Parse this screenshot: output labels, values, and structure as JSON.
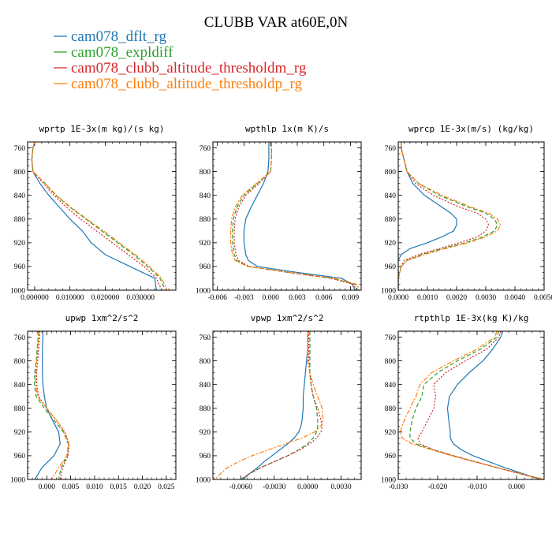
{
  "figure": {
    "title": "CLUBB VAR at60E,0N"
  },
  "legend": [
    {
      "label": "cam078_dflt_rg",
      "color": "#1f77b4"
    },
    {
      "label": "cam078_expldiff",
      "color": "#2ca02c"
    },
    {
      "label": "cam078_clubb_altitude_thresholdm_rg",
      "color": "#d62728"
    },
    {
      "label": "cam078_clubb_altitude_thresholdp_rg",
      "color": "#ff7f0e"
    }
  ],
  "chart_data": [
    {
      "type": "line",
      "title": "wprtp  1E-3x(m kg)/(s kg)",
      "xlim": [
        -0.002,
        0.04
      ],
      "ylim": [
        750,
        1000
      ],
      "xticks": [
        0,
        0.01,
        0.02,
        0.03
      ],
      "xticklabels": [
        "0.000000",
        "0.010000",
        "0.020000",
        "0.030000"
      ],
      "yticks": [
        760,
        800,
        840,
        880,
        920,
        960,
        1000
      ],
      "yticklabels": [
        "760",
        "800",
        "840",
        "880",
        "920",
        "960",
        "1000"
      ],
      "y": [
        750,
        760,
        780,
        800,
        820,
        840,
        860,
        880,
        900,
        920,
        940,
        960,
        980,
        1000
      ],
      "series": [
        {
          "name": "cam078_dflt_rg",
          "color": "#1f77b4",
          "style": "solid",
          "values": [
            0.0,
            -0.0005,
            -0.0008,
            -0.0005,
            0.0015,
            0.004,
            0.007,
            0.01,
            0.0135,
            0.016,
            0.02,
            0.027,
            0.034,
            0.0345
          ]
        },
        {
          "name": "cam078_expldiff",
          "color": "#2ca02c",
          "style": "dashed",
          "values": [
            0.0,
            -0.0005,
            -0.0008,
            -0.0005,
            0.003,
            0.006,
            0.01,
            0.0145,
            0.019,
            0.0235,
            0.028,
            0.032,
            0.0355,
            0.037
          ]
        },
        {
          "name": "cam078_clubb_altitude_thresholdm_rg",
          "color": "#d62728",
          "style": "dotted",
          "values": [
            0.0,
            -0.0005,
            -0.0008,
            -0.0005,
            0.0025,
            0.0055,
            0.009,
            0.013,
            0.0175,
            0.022,
            0.0265,
            0.031,
            0.0345,
            0.036
          ]
        },
        {
          "name": "cam078_clubb_altitude_thresholdp_rg",
          "color": "#ff7f0e",
          "style": "dashdot",
          "values": [
            0.0,
            -0.0005,
            -0.0008,
            -0.0005,
            0.003,
            0.0062,
            0.0102,
            0.0148,
            0.0195,
            0.024,
            0.0285,
            0.0325,
            0.036,
            0.0375
          ]
        }
      ]
    },
    {
      "type": "line",
      "title": "wpthlp  1x(m K)/s",
      "xlim": [
        -0.0065,
        0.0102
      ],
      "ylim": [
        750,
        1000
      ],
      "xticks": [
        -0.006,
        -0.003,
        0.0,
        0.003,
        0.006,
        0.009
      ],
      "xticklabels": [
        "-0.006",
        "-0.003",
        "0.000",
        "0.003",
        "0.006",
        "0.009"
      ],
      "yticks": [
        760,
        800,
        840,
        880,
        920,
        960,
        1000
      ],
      "yticklabels": [
        "760",
        "800",
        "840",
        "880",
        "920",
        "960",
        "1000"
      ],
      "y": [
        750,
        760,
        780,
        800,
        820,
        840,
        860,
        880,
        900,
        920,
        940,
        950,
        960,
        970,
        980,
        990,
        1000
      ],
      "series": [
        {
          "name": "cam078_dflt_rg",
          "color": "#1f77b4",
          "style": "solid",
          "values": [
            -0.0002,
            -0.0002,
            -0.0002,
            -0.0003,
            -0.0008,
            -0.0015,
            -0.0022,
            -0.0028,
            -0.003,
            -0.003,
            -0.0028,
            -0.0025,
            -0.0015,
            0.003,
            0.008,
            0.0092,
            0.0095
          ]
        },
        {
          "name": "cam078_expldiff",
          "color": "#2ca02c",
          "style": "dashed",
          "values": [
            0.0001,
            0.0001,
            0.0001,
            0.0,
            -0.0015,
            -0.003,
            -0.0038,
            -0.0042,
            -0.0043,
            -0.0043,
            -0.0041,
            -0.0038,
            -0.0025,
            0.002,
            0.007,
            0.0095,
            0.0098
          ]
        },
        {
          "name": "cam078_clubb_altitude_thresholdm_rg",
          "color": "#d62728",
          "style": "dotted",
          "values": [
            0.0001,
            0.0001,
            0.0001,
            0.0,
            -0.0013,
            -0.0028,
            -0.0036,
            -0.004,
            -0.0041,
            -0.0041,
            -0.0039,
            -0.0036,
            -0.0024,
            0.002,
            0.0068,
            0.0093,
            0.0097
          ]
        },
        {
          "name": "cam078_clubb_altitude_thresholdp_rg",
          "color": "#ff7f0e",
          "style": "dashdot",
          "values": [
            0.0001,
            0.0001,
            0.0001,
            0.0,
            -0.0016,
            -0.0032,
            -0.004,
            -0.0044,
            -0.0045,
            -0.0045,
            -0.0043,
            -0.004,
            -0.0026,
            0.0022,
            0.0072,
            0.0097,
            0.01
          ]
        }
      ]
    },
    {
      "type": "line",
      "title": "wprcp  1E-3x(m/s) (kg/kg)",
      "xlim": [
        0,
        0.005
      ],
      "ylim": [
        750,
        1000
      ],
      "xticks": [
        0,
        0.001,
        0.002,
        0.003,
        0.004,
        0.005
      ],
      "xticklabels": [
        "0.0000",
        "0.0010",
        "0.0020",
        "0.0030",
        "0.0040",
        "0.0050"
      ],
      "yticks": [
        760,
        800,
        840,
        880,
        920,
        960,
        1000
      ],
      "yticklabels": [
        "760",
        "800",
        "840",
        "880",
        "920",
        "960",
        "1000"
      ],
      "y": [
        750,
        760,
        780,
        800,
        820,
        840,
        860,
        870,
        880,
        890,
        900,
        910,
        920,
        930,
        940,
        950,
        960,
        980,
        1000
      ],
      "series": [
        {
          "name": "cam078_dflt_rg",
          "color": "#1f77b4",
          "style": "solid",
          "values": [
            0.0001,
            0.0001,
            0.0002,
            0.0003,
            0.0005,
            0.0009,
            0.0015,
            0.0018,
            0.002,
            0.002,
            0.0019,
            0.0015,
            0.001,
            0.0004,
            0.0001,
            0.0,
            0.0,
            0.0,
            0.0
          ]
        },
        {
          "name": "cam078_expldiff",
          "color": "#2ca02c",
          "style": "dashed",
          "values": [
            0.0001,
            0.0001,
            0.0002,
            0.0003,
            0.0007,
            0.0014,
            0.0024,
            0.003,
            0.0033,
            0.0034,
            0.0033,
            0.0029,
            0.0023,
            0.0015,
            0.0008,
            0.0003,
            0.0001,
            0.0,
            0.0
          ]
        },
        {
          "name": "cam078_clubb_altitude_thresholdm_rg",
          "color": "#d62728",
          "style": "dotted",
          "values": [
            0.0001,
            0.0001,
            0.0002,
            0.0003,
            0.0006,
            0.0012,
            0.0021,
            0.0027,
            0.003,
            0.0031,
            0.003,
            0.0027,
            0.0021,
            0.0014,
            0.0007,
            0.0002,
            0.0001,
            0.0,
            0.0
          ]
        },
        {
          "name": "cam078_clubb_altitude_thresholdp_rg",
          "color": "#ff7f0e",
          "style": "dashdot",
          "values": [
            0.0001,
            0.0001,
            0.0002,
            0.0003,
            0.0007,
            0.0015,
            0.0025,
            0.0031,
            0.0034,
            0.0035,
            0.0034,
            0.003,
            0.0024,
            0.0016,
            0.0009,
            0.0003,
            0.0001,
            0.0,
            0.0
          ]
        }
      ]
    },
    {
      "type": "line",
      "title": "upwp  1xm^2/s^2",
      "xlim": [
        -0.004,
        0.027
      ],
      "ylim": [
        750,
        1000
      ],
      "xticks": [
        0.0,
        0.005,
        0.01,
        0.015,
        0.02,
        0.025
      ],
      "xticklabels": [
        "0.000",
        "0.005",
        "0.010",
        "0.015",
        "0.020",
        "0.025"
      ],
      "yticks": [
        760,
        800,
        840,
        880,
        920,
        960,
        1000
      ],
      "yticklabels": [
        "760",
        "800",
        "840",
        "880",
        "920",
        "960",
        "1000"
      ],
      "y": [
        750,
        760,
        780,
        800,
        820,
        840,
        860,
        880,
        900,
        920,
        940,
        960,
        980,
        1000
      ],
      "series": [
        {
          "name": "cam078_dflt_rg",
          "color": "#1f77b4",
          "style": "solid",
          "values": [
            -0.0008,
            -0.0008,
            -0.0009,
            -0.0009,
            -0.0009,
            -0.0008,
            -0.0005,
            0.0,
            0.0012,
            0.0025,
            0.0028,
            0.0015,
            -0.001,
            -0.0025
          ]
        },
        {
          "name": "cam078_expldiff",
          "color": "#2ca02c",
          "style": "dashed",
          "values": [
            -0.0018,
            -0.0018,
            -0.002,
            -0.0022,
            -0.0025,
            -0.0026,
            -0.0022,
            -0.0005,
            0.0015,
            0.0035,
            0.0045,
            0.0043,
            0.003,
            0.0025
          ]
        },
        {
          "name": "cam078_clubb_altitude_thresholdm_rg",
          "color": "#d62728",
          "style": "dotted",
          "values": [
            -0.0015,
            -0.0015,
            -0.0017,
            -0.0019,
            -0.0021,
            -0.0021,
            -0.0017,
            0.0,
            0.002,
            0.0038,
            0.0047,
            0.0045,
            0.0033,
            0.0028
          ]
        },
        {
          "name": "cam078_clubb_altitude_thresholdp_rg",
          "color": "#ff7f0e",
          "style": "dashdot",
          "values": [
            -0.0017,
            -0.0017,
            -0.0019,
            -0.0021,
            -0.0023,
            -0.0023,
            -0.0019,
            0.0,
            0.002,
            0.0037,
            0.0046,
            0.0042,
            0.0025,
            0.001
          ]
        }
      ]
    },
    {
      "type": "line",
      "title": "vpwp  1xm^2/s^2",
      "xlim": [
        -0.0085,
        0.0048
      ],
      "ylim": [
        750,
        1000
      ],
      "xticks": [
        -0.006,
        -0.003,
        0.0,
        0.003
      ],
      "xticklabels": [
        "-0.0060",
        "-0.0030",
        "0.0000",
        "0.0030"
      ],
      "yticks": [
        760,
        800,
        840,
        880,
        920,
        960,
        1000
      ],
      "yticklabels": [
        "760",
        "800",
        "840",
        "880",
        "920",
        "960",
        "1000"
      ],
      "y": [
        750,
        760,
        780,
        800,
        820,
        840,
        860,
        880,
        900,
        910,
        920,
        930,
        940,
        950,
        960,
        970,
        980,
        990,
        1000
      ],
      "series": [
        {
          "name": "cam078_dflt_rg",
          "color": "#1f77b4",
          "style": "solid",
          "values": [
            0.0,
            0.0,
            0.0,
            -0.0001,
            -0.0002,
            -0.0003,
            -0.0004,
            -0.0004,
            -0.0005,
            -0.0006,
            -0.0008,
            -0.0012,
            -0.0018,
            -0.0025,
            -0.0032,
            -0.0039,
            -0.0045,
            -0.0052,
            -0.0058
          ]
        },
        {
          "name": "cam078_expldiff",
          "color": "#2ca02c",
          "style": "dashed",
          "values": [
            0.0002,
            0.0002,
            0.0002,
            0.0002,
            0.0002,
            0.0003,
            0.0005,
            0.0008,
            0.0009,
            0.0009,
            0.0008,
            0.0005,
            0.0,
            -0.0008,
            -0.0018,
            -0.003,
            -0.0042,
            -0.0052,
            -0.006
          ]
        },
        {
          "name": "cam078_clubb_altitude_thresholdm_rg",
          "color": "#d62728",
          "style": "dotted",
          "values": [
            0.0001,
            0.0001,
            0.0001,
            0.0001,
            0.0002,
            0.0003,
            0.0005,
            0.0009,
            0.0012,
            0.0013,
            0.0012,
            0.0008,
            0.0002,
            -0.0007,
            -0.0018,
            -0.003,
            -0.0042,
            -0.0052,
            -0.006
          ]
        },
        {
          "name": "cam078_clubb_altitude_thresholdp_rg",
          "color": "#ff7f0e",
          "style": "dashdot",
          "values": [
            0.0,
            0.0,
            0.0,
            0.0,
            0.0002,
            0.0005,
            0.0009,
            0.0013,
            0.0014,
            0.0012,
            0.0006,
            -0.0005,
            -0.002,
            -0.0035,
            -0.005,
            -0.0062,
            -0.0072,
            -0.0078,
            -0.0083
          ]
        }
      ]
    },
    {
      "type": "line",
      "title": "rtpthlp  1E-3x(kg K)/kg",
      "xlim": [
        -0.03,
        0.007
      ],
      "ylim": [
        750,
        1000
      ],
      "xticks": [
        -0.03,
        -0.02,
        -0.01,
        0.0
      ],
      "xticklabels": [
        "-0.030",
        "-0.020",
        "-0.010",
        "0.000"
      ],
      "yticks": [
        760,
        800,
        840,
        880,
        920,
        960,
        1000
      ],
      "yticklabels": [
        "760",
        "800",
        "840",
        "880",
        "920",
        "960",
        "1000"
      ],
      "y": [
        750,
        760,
        780,
        800,
        820,
        840,
        860,
        880,
        900,
        920,
        930,
        940,
        950,
        960,
        980,
        1000
      ],
      "series": [
        {
          "name": "cam078_dflt_rg",
          "color": "#1f77b4",
          "style": "solid",
          "values": [
            -0.0035,
            -0.004,
            -0.006,
            -0.0085,
            -0.012,
            -0.015,
            -0.017,
            -0.0175,
            -0.0172,
            -0.0168,
            -0.0168,
            -0.016,
            -0.014,
            -0.011,
            -0.003,
            0.006
          ]
        },
        {
          "name": "cam078_expldiff",
          "color": "#2ca02c",
          "style": "dashed",
          "values": [
            -0.0045,
            -0.005,
            -0.009,
            -0.015,
            -0.02,
            -0.0235,
            -0.024,
            -0.0255,
            -0.0265,
            -0.027,
            -0.027,
            -0.0255,
            -0.021,
            -0.016,
            -0.005,
            0.0065
          ]
        },
        {
          "name": "cam078_clubb_altitude_thresholdm_rg",
          "color": "#d62728",
          "style": "dotted",
          "values": [
            -0.004,
            -0.0045,
            -0.0075,
            -0.013,
            -0.018,
            -0.021,
            -0.0205,
            -0.021,
            -0.0225,
            -0.024,
            -0.025,
            -0.0245,
            -0.021,
            -0.016,
            -0.005,
            0.0065
          ]
        },
        {
          "name": "cam078_clubb_altitude_thresholdp_rg",
          "color": "#ff7f0e",
          "style": "dashdot",
          "values": [
            -0.005,
            -0.0055,
            -0.01,
            -0.016,
            -0.0215,
            -0.0245,
            -0.0255,
            -0.027,
            -0.0285,
            -0.0295,
            -0.029,
            -0.0265,
            -0.0215,
            -0.0165,
            -0.005,
            0.007
          ]
        }
      ]
    }
  ]
}
